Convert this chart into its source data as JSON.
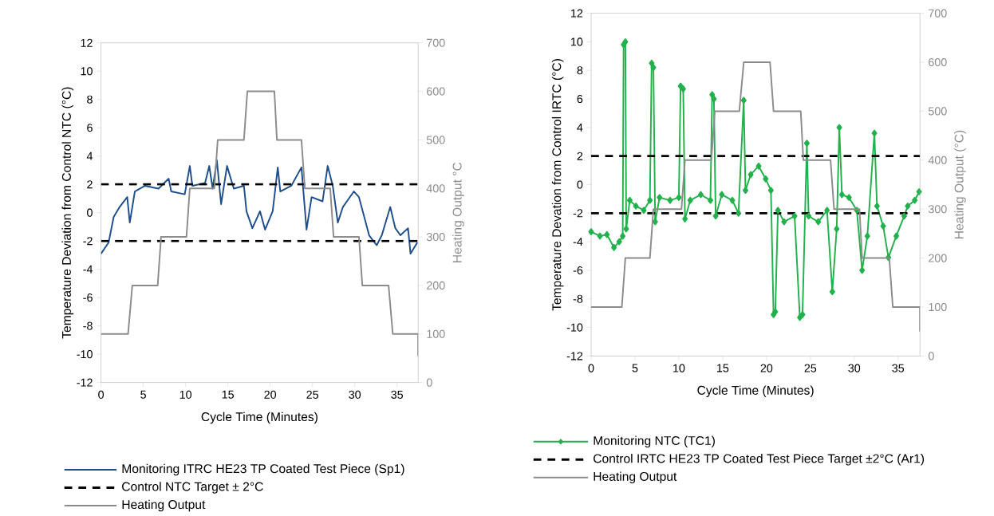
{
  "chart_data": [
    {
      "type": "line",
      "xlabel": "Cycle Time (Minutes)",
      "ylabel": "Temperature Deviation from Control NTC (°C)",
      "y2label": "Heating Output °C",
      "xlim": [
        0,
        37.5
      ],
      "xticks": [
        0,
        5,
        10,
        15,
        20,
        25,
        30,
        35
      ],
      "ylim": [
        -12,
        12
      ],
      "yticks": [
        -12,
        -10,
        -8,
        -6,
        -4,
        -2,
        0,
        2,
        4,
        6,
        8,
        10,
        12
      ],
      "y2lim": [
        0,
        700
      ],
      "y2ticks": [
        0,
        100,
        200,
        300,
        400,
        500,
        600,
        700
      ],
      "legend": "bottom",
      "series": [
        {
          "name": "Monitoring ITRC HE23 TP Coated Test Piece (Sp1)",
          "color": "#1f4e8c",
          "x": [
            0,
            0.9,
            1.5,
            2.2,
            3.1,
            3.4,
            4.0,
            5.2,
            6.8,
            8.0,
            8.3,
            9.9,
            10.5,
            10.8,
            12.3,
            12.8,
            13.2,
            13.7,
            14.2,
            14.9,
            15.7,
            16.9,
            17.2,
            17.9,
            18.8,
            19.4,
            20.3,
            20.9,
            21.2,
            22.5,
            23.7,
            24.3,
            24.9,
            26.2,
            26.8,
            27.4,
            28.0,
            28.6,
            29.9,
            30.5,
            31.7,
            32.6,
            33.2,
            34.2,
            34.8,
            35.4,
            36.3,
            36.6,
            37.4
          ],
          "values": [
            -2.9,
            -2.1,
            -0.3,
            0.4,
            1.1,
            -0.7,
            1.5,
            1.9,
            1.7,
            2.4,
            1.5,
            1.3,
            3.3,
            1.9,
            2.1,
            3.3,
            1.7,
            3.7,
            0.6,
            3.3,
            1.7,
            1.9,
            0.1,
            -1.1,
            0.1,
            -1.2,
            0.1,
            3.2,
            1.5,
            1.9,
            3.2,
            -1.2,
            1.1,
            0.8,
            3.3,
            1.9,
            -0.7,
            0.4,
            1.5,
            1.1,
            -1.6,
            -2.3,
            -1.6,
            0.4,
            -1.1,
            -1.6,
            -1.1,
            -2.9,
            -2.1
          ]
        },
        {
          "name": "Heating Output",
          "color": "#8c8c8c",
          "axis": "y2",
          "x": [
            0,
            3.2,
            3.7,
            6.7,
            7.1,
            10.1,
            10.5,
            13.4,
            13.8,
            16.9,
            17.3,
            20.5,
            20.8,
            23.7,
            24.1,
            27.1,
            27.5,
            30.5,
            30.9,
            34.0,
            34.5,
            37.5,
            37.5
          ],
          "values": [
            100,
            100,
            200,
            200,
            300,
            300,
            400,
            400,
            500,
            500,
            600,
            600,
            500,
            500,
            400,
            400,
            300,
            300,
            200,
            200,
            100,
            100,
            55
          ]
        }
      ],
      "ref_lines": [
        {
          "axis": "y",
          "value": 2,
          "label": "Control NTC Target ± 2°C",
          "color": "#000000",
          "line_style": "dashed"
        },
        {
          "axis": "y",
          "value": -2,
          "color": "#000000",
          "line_style": "dashed"
        }
      ]
    },
    {
      "type": "line",
      "xlabel": "Cycle Time (Minutes)",
      "ylabel": "Temperature Devation from Control IRTC  (°C)",
      "y2label": "Heating Output (°C)",
      "xlim": [
        0,
        37.5
      ],
      "xticks": [
        0,
        5,
        10,
        15,
        20,
        25,
        30,
        35
      ],
      "ylim": [
        -12,
        12
      ],
      "yticks": [
        -12,
        -10,
        -8,
        -6,
        -4,
        -2,
        0,
        2,
        4,
        6,
        8,
        10,
        12
      ],
      "y2lim": [
        0,
        700
      ],
      "y2ticks": [
        0,
        100,
        200,
        300,
        400,
        500,
        600,
        700
      ],
      "legend": "bottom",
      "series": [
        {
          "name": "Monitoring NTC (TC1)",
          "color": "#22b14c",
          "marker": "diamond",
          "x": [
            0,
            1.0,
            1.8,
            2.6,
            3.2,
            3.6,
            3.7,
            3.9,
            4.0,
            4.4,
            5.1,
            6.0,
            6.7,
            6.9,
            7.1,
            7.3,
            7.8,
            9.0,
            10.0,
            10.2,
            10.5,
            10.7,
            11.3,
            12.5,
            13.6,
            13.8,
            14.0,
            14.2,
            14.9,
            16.1,
            16.8,
            17.4,
            17.6,
            18.2,
            19.1,
            19.9,
            20.5,
            20.8,
            21.0,
            21.3,
            22.0,
            23.2,
            23.8,
            24.1,
            24.6,
            24.8,
            25.9,
            26.9,
            27.5,
            28.0,
            28.3,
            28.6,
            29.4,
            30.3,
            30.9,
            31.5,
            32.3,
            32.6,
            33.3,
            33.9,
            34.8,
            35.7,
            36.1,
            36.9,
            37.4
          ],
          "values": [
            -3.3,
            -3.6,
            -3.5,
            -4.4,
            -4.0,
            -3.6,
            9.8,
            10.0,
            -3.1,
            -1.1,
            -1.5,
            -1.8,
            -1.1,
            8.5,
            8.2,
            -2.6,
            -0.9,
            -1.1,
            -0.9,
            6.9,
            6.7,
            -2.4,
            -1.1,
            -0.7,
            -1.1,
            6.3,
            6.0,
            -2.2,
            -0.7,
            -1.1,
            -2.0,
            5.9,
            -0.4,
            0.7,
            1.3,
            0.4,
            -0.4,
            -9.1,
            -8.9,
            -1.8,
            -2.6,
            -2.2,
            -9.3,
            -9.1,
            2.9,
            -2.2,
            -2.6,
            -1.8,
            -7.5,
            -3.1,
            4.0,
            -0.7,
            -0.9,
            -1.8,
            -6.0,
            -3.6,
            3.6,
            -1.5,
            -2.9,
            -5.1,
            -3.6,
            -2.2,
            -1.5,
            -1.1,
            -0.5
          ]
        },
        {
          "name": "Heating Output",
          "color": "#8c8c8c",
          "axis": "y2",
          "x": [
            0,
            3.5,
            3.9,
            6.7,
            7.1,
            10.3,
            10.7,
            13.7,
            14.1,
            16.9,
            17.4,
            20.4,
            20.8,
            23.9,
            24.2,
            27.3,
            27.7,
            30.6,
            30.9,
            34.0,
            34.4,
            37.5,
            37.5
          ],
          "values": [
            100,
            100,
            200,
            200,
            300,
            300,
            400,
            400,
            500,
            500,
            600,
            600,
            500,
            500,
            400,
            400,
            300,
            300,
            200,
            200,
            100,
            100,
            50
          ]
        }
      ],
      "ref_lines": [
        {
          "axis": "y",
          "value": 2,
          "label": "Control IRTC HE23 TP Coated Test Piece Target ±2°C (Ar1)",
          "color": "#000000",
          "line_style": "dashed"
        },
        {
          "axis": "y",
          "value": -2,
          "color": "#000000",
          "line_style": "dashed"
        }
      ]
    }
  ]
}
